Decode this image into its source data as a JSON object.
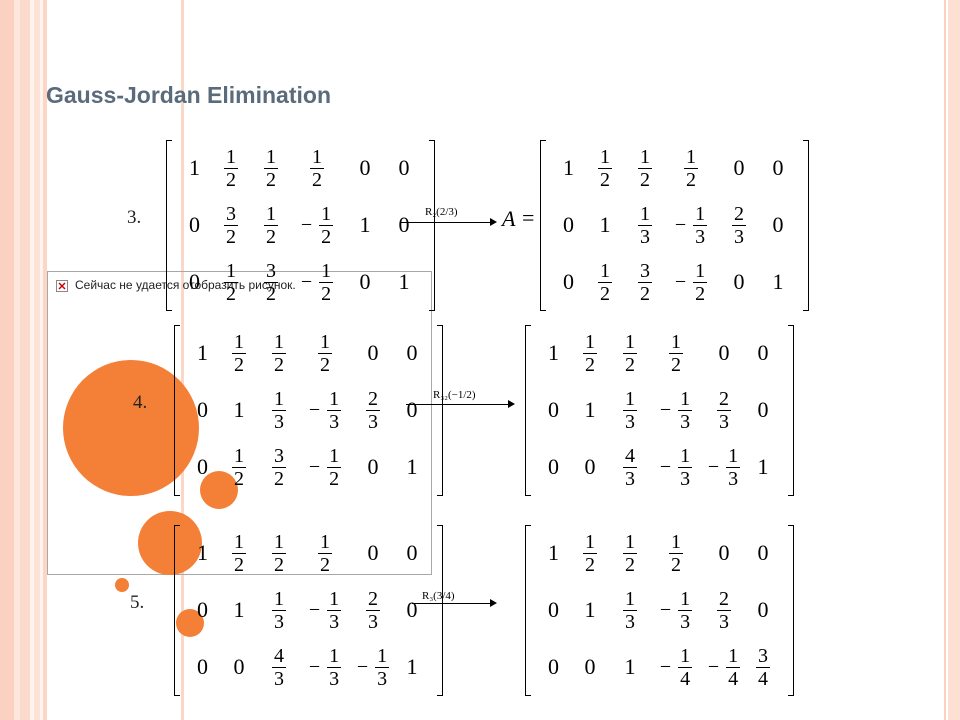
{
  "slide": {
    "title": "Gauss-Jordan Elimination",
    "accent_color": "#f47f37",
    "stripe_color": "#fbd7c8"
  },
  "placeholder": {
    "text": "Сейчас не удается отобразить рисунок.",
    "icon": "broken-image-icon"
  },
  "rows": [
    {
      "label": "3.",
      "op_text": "R₂(2/3)",
      "result_prefix": "A",
      "result_eq": "=",
      "left": [
        [
          "1",
          "1/2",
          "1/2",
          "1/2",
          "0",
          "0"
        ],
        [
          "0",
          "3/2",
          "1/2",
          "-1/2",
          "1",
          "0"
        ],
        [
          "0",
          "1/2",
          "3/2",
          "-1/2",
          "0",
          "1"
        ]
      ],
      "right": [
        [
          "1",
          "1/2",
          "1/2",
          "1/2",
          "0",
          "0"
        ],
        [
          "0",
          "1",
          "1/3",
          "-1/3",
          "2/3",
          "0"
        ],
        [
          "0",
          "1/2",
          "3/2",
          "-1/2",
          "0",
          "1"
        ]
      ]
    },
    {
      "label": "4.",
      "op_text": "R₃₂(−1/2)",
      "result_prefix": "",
      "result_eq": "",
      "left": [
        [
          "1",
          "1/2",
          "1/2",
          "1/2",
          "0",
          "0"
        ],
        [
          "0",
          "1",
          "1/3",
          "-1/3",
          "2/3",
          "0"
        ],
        [
          "0",
          "1/2",
          "3/2",
          "-1/2",
          "0",
          "1"
        ]
      ],
      "right": [
        [
          "1",
          "1/2",
          "1/2",
          "1/2",
          "0",
          "0"
        ],
        [
          "0",
          "1",
          "1/3",
          "-1/3",
          "2/3",
          "0"
        ],
        [
          "0",
          "0",
          "4/3",
          "-1/3",
          "-1/3",
          "1"
        ]
      ]
    },
    {
      "label": "5.",
      "op_text": "R₃(3/4)",
      "result_prefix": "",
      "result_eq": "",
      "left": [
        [
          "1",
          "1/2",
          "1/2",
          "1/2",
          "0",
          "0"
        ],
        [
          "0",
          "1",
          "1/3",
          "-1/3",
          "2/3",
          "0"
        ],
        [
          "0",
          "0",
          "4/3",
          "-1/3",
          "-1/3",
          "1"
        ]
      ],
      "right": [
        [
          "1",
          "1/2",
          "1/2",
          "1/2",
          "0",
          "0"
        ],
        [
          "0",
          "1",
          "1/3",
          "-1/3",
          "2/3",
          "0"
        ],
        [
          "0",
          "0",
          "1",
          "-1/4",
          "-1/4",
          "3/4"
        ]
      ]
    }
  ]
}
